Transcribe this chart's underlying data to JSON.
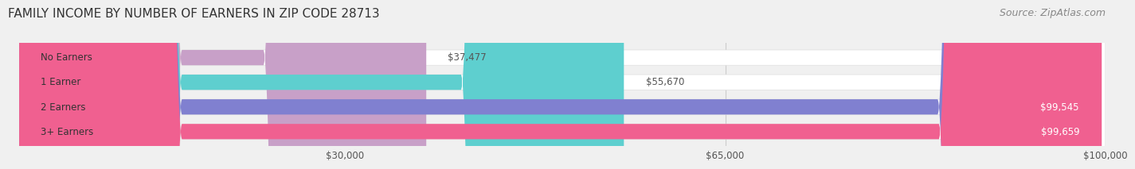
{
  "title": "FAMILY INCOME BY NUMBER OF EARNERS IN ZIP CODE 28713",
  "source": "Source: ZipAtlas.com",
  "categories": [
    "No Earners",
    "1 Earner",
    "2 Earners",
    "3+ Earners"
  ],
  "values": [
    37477,
    55670,
    99545,
    99659
  ],
  "bar_colors": [
    "#c8a0c8",
    "#5ecfcf",
    "#8080d0",
    "#f06090"
  ],
  "label_colors": [
    "#555555",
    "#555555",
    "#ffffff",
    "#ffffff"
  ],
  "x_min": 0,
  "x_max": 100000,
  "x_ticks": [
    30000,
    65000,
    100000
  ],
  "x_tick_labels": [
    "$30,000",
    "$65,000",
    "$100,000"
  ],
  "background_color": "#f0f0f0",
  "bar_bg_color": "#f0f0f0",
  "title_fontsize": 11,
  "source_fontsize": 9
}
